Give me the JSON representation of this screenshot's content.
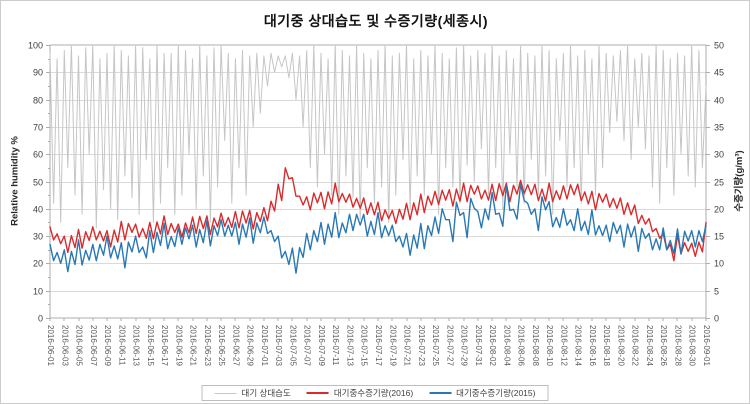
{
  "title": "대기중 상대습도 및 수증기량(세종시)",
  "legend": [
    {
      "label": "대기 상대습도",
      "color": "#c6c6c6"
    },
    {
      "label": "대기중수증기량(2016)",
      "color": "#d92b2b"
    },
    {
      "label": "대기중수증기량(2015)",
      "color": "#2878b5"
    }
  ],
  "chart_data": {
    "type": "line",
    "title": "대기중 상대습도 및 수증기량(세종시)",
    "grid": "horizontal",
    "legend_position": "bottom",
    "points_per_day": 2,
    "x_start": "2016-06-01",
    "x_end": "2016-09-01",
    "x_tick_labels": [
      "2016-06-01",
      "2016-06-03",
      "2016-06-05",
      "2016-06-07",
      "2016-06-09",
      "2016-06-11",
      "2016-06-13",
      "2016-06-15",
      "2016-06-17",
      "2016-06-19",
      "2016-06-21",
      "2016-06-23",
      "2016-06-25",
      "2016-06-27",
      "2016-06-29",
      "2016-07-01",
      "2016-07-03",
      "2016-07-05",
      "2016-07-07",
      "2016-07-09",
      "2016-07-11",
      "2016-07-13",
      "2016-07-15",
      "2016-07-17",
      "2016-07-19",
      "2016-07-21",
      "2016-07-23",
      "2016-07-25",
      "2016-07-27",
      "2016-07-29",
      "2016-07-31",
      "2016-08-02",
      "2016-08-04",
      "2016-08-06",
      "2016-08-08",
      "2016-08-10",
      "2016-08-12",
      "2016-08-14",
      "2016-08-16",
      "2016-08-18",
      "2016-08-20",
      "2016-08-22",
      "2016-08-24",
      "2016-08-26",
      "2016-08-28",
      "2016-08-30",
      "2016-09-01"
    ],
    "left_axis": {
      "label": "Relative humidity %",
      "min": 0,
      "max": 100,
      "tick_step": 10
    },
    "right_axis": {
      "label": "수증기량(g/m³)",
      "min": 0,
      "max": 50,
      "tick_step": 5
    },
    "series": [
      {
        "name": "대기 상대습도",
        "axis": "left",
        "color": "#c6c6c6",
        "values": [
          97,
          42,
          95,
          35,
          98,
          55,
          100,
          45,
          96,
          38,
          99,
          60,
          100,
          33,
          95,
          47,
          97,
          40,
          100,
          36,
          98,
          52,
          96,
          44,
          100,
          38,
          99,
          58,
          95,
          35,
          100,
          42,
          97,
          55,
          97,
          38,
          100,
          45,
          98,
          60,
          95,
          40,
          100,
          52,
          96,
          35,
          99,
          48,
          100,
          65,
          97,
          42,
          95,
          55,
          98,
          45,
          96,
          70,
          97,
          75,
          96,
          85,
          97,
          90,
          96,
          92,
          96,
          88,
          97,
          80,
          96,
          70,
          98,
          55,
          100,
          48,
          97,
          60,
          95,
          45,
          100,
          38,
          98,
          52,
          96,
          44,
          100,
          36,
          97,
          55,
          95,
          42,
          98,
          48,
          100,
          35,
          96,
          45,
          97,
          58,
          100,
          40,
          95,
          52,
          98,
          45,
          96,
          60,
          100,
          38,
          97,
          55,
          95,
          48,
          99,
          42,
          100,
          56,
          96,
          50,
          98,
          62,
          97,
          45,
          100,
          55,
          96,
          40,
          98,
          60,
          95,
          48,
          100,
          42,
          97,
          58,
          96,
          45,
          100,
          52,
          98,
          38,
          95,
          65,
          97,
          48,
          100,
          55,
          96,
          42,
          98,
          60,
          95,
          45,
          100,
          55,
          97,
          68,
          96,
          72,
          98,
          65,
          100,
          58,
          95,
          70,
          97,
          62,
          96,
          48,
          100,
          42,
          98,
          55,
          95,
          45,
          97,
          60,
          96,
          52,
          100,
          48,
          98,
          55,
          85
        ]
      },
      {
        "name": "대기중수증기량(2016)",
        "axis": "right",
        "color": "#d92b2b",
        "values": [
          16.7,
          14.3,
          15.4,
          13.6,
          15.0,
          12.0,
          15.1,
          12.9,
          16.2,
          12.8,
          15.8,
          14.2,
          16.7,
          14.3,
          15.9,
          14.1,
          16.0,
          13.0,
          16.1,
          13.9,
          17.7,
          14.3,
          17.3,
          15.7,
          17.2,
          14.8,
          16.4,
          14.6,
          17.5,
          14.5,
          17.6,
          15.4,
          18.7,
          15.3,
          17.3,
          15.7,
          17.2,
          14.8,
          17.4,
          15.6,
          18.5,
          15.5,
          18.6,
          16.4,
          18.7,
          15.3,
          18.3,
          16.7,
          19.2,
          16.8,
          18.4,
          16.6,
          19.5,
          16.5,
          19.6,
          17.4,
          19.7,
          16.3,
          19.3,
          17.7,
          20.2,
          17.8,
          21.4,
          19.6,
          24.5,
          21.5,
          27.5,
          25.5,
          25.7,
          22.3,
          22.3,
          20.7,
          22.2,
          19.8,
          22.9,
          21.1,
          23.0,
          20.0,
          23.1,
          20.9,
          24.7,
          21.3,
          22.8,
          21.2,
          22.7,
          20.3,
          21.9,
          20.1,
          22.0,
          19.0,
          21.1,
          18.9,
          21.2,
          17.8,
          19.8,
          18.2,
          19.7,
          17.3,
          19.9,
          18.1,
          21.0,
          18.0,
          21.1,
          18.9,
          22.7,
          19.3,
          22.3,
          20.7,
          23.2,
          20.8,
          23.4,
          21.6,
          23.5,
          20.5,
          23.6,
          21.4,
          24.7,
          21.3,
          24.3,
          22.7,
          24.2,
          21.8,
          23.4,
          21.6,
          24.5,
          21.5,
          24.6,
          22.4,
          24.7,
          21.3,
          24.3,
          22.7,
          25.2,
          22.8,
          24.4,
          22.6,
          24.5,
          21.5,
          23.6,
          21.4,
          24.7,
          21.3,
          23.3,
          21.7,
          24.2,
          21.8,
          24.4,
          22.6,
          24.5,
          21.5,
          23.1,
          20.9,
          23.2,
          19.8,
          22.8,
          21.2,
          22.7,
          20.3,
          21.9,
          20.1,
          22.0,
          19.0,
          21.1,
          18.9,
          20.7,
          17.3,
          18.8,
          17.2,
          18.2,
          15.8,
          16.4,
          14.6,
          15.5,
          12.5,
          13.5,
          10.5,
          15.2,
          11.8,
          13.8,
          12.2,
          13.7,
          11.3,
          13.9,
          12.1,
          17.5
        ]
      },
      {
        "name": "대기중수증기량(2015)",
        "axis": "right",
        "color": "#2878b5",
        "values": [
          13.5,
          10.5,
          12.0,
          10.0,
          12.5,
          8.5,
          12.2,
          9.8,
          14.3,
          9.7,
          12.4,
          10.6,
          13.5,
          10.5,
          13.5,
          11.5,
          15.0,
          11.0,
          13.2,
          10.8,
          13.8,
          9.2,
          13.9,
          12.1,
          15.0,
          12.0,
          13.0,
          11.0,
          16.0,
          12.0,
          15.7,
          13.3,
          17.3,
          12.7,
          14.9,
          13.1,
          16.5,
          13.5,
          16.5,
          14.5,
          17.0,
          13.0,
          16.2,
          13.8,
          17.8,
          13.2,
          16.9,
          15.1,
          18.0,
          15.0,
          17.0,
          15.0,
          17.5,
          13.5,
          17.2,
          14.8,
          18.3,
          13.7,
          17.4,
          15.6,
          18.5,
          15.5,
          16.0,
          14.0,
          15.0,
          11.0,
          12.2,
          9.8,
          12.8,
          8.2,
          12.9,
          11.1,
          15.5,
          12.5,
          16.0,
          14.0,
          17.5,
          13.5,
          17.2,
          14.8,
          19.3,
          14.7,
          17.4,
          15.6,
          19.0,
          16.0,
          19.0,
          17.0,
          19.0,
          15.0,
          17.7,
          15.3,
          19.3,
          14.7,
          16.9,
          15.1,
          17.0,
          14.0,
          15.0,
          13.0,
          15.5,
          11.5,
          15.2,
          12.8,
          17.3,
          12.7,
          16.9,
          15.1,
          18.5,
          15.5,
          20.0,
          18.0,
          18.0,
          14.0,
          21.2,
          18.8,
          19.3,
          14.7,
          21.9,
          20.1,
          19.5,
          16.5,
          20.0,
          18.0,
          23.0,
          19.0,
          19.2,
          16.8,
          24.3,
          19.7,
          19.9,
          18.1,
          24.5,
          21.5,
          21.0,
          19.0,
          20.0,
          16.0,
          22.2,
          19.8,
          21.3,
          16.7,
          18.4,
          16.6,
          20.0,
          17.0,
          18.0,
          16.0,
          20.0,
          16.0,
          17.7,
          15.3,
          19.8,
          15.2,
          16.9,
          15.1,
          17.0,
          14.0,
          17.5,
          15.5,
          17.0,
          13.0,
          17.2,
          14.8,
          16.8,
          12.2,
          16.4,
          14.6,
          15.5,
          12.5,
          14.5,
          12.5,
          16.5,
          12.5,
          14.2,
          11.8,
          16.3,
          11.7,
          15.9,
          14.1,
          16.0,
          13.0,
          16.0,
          14.0,
          17.0
        ]
      }
    ]
  }
}
